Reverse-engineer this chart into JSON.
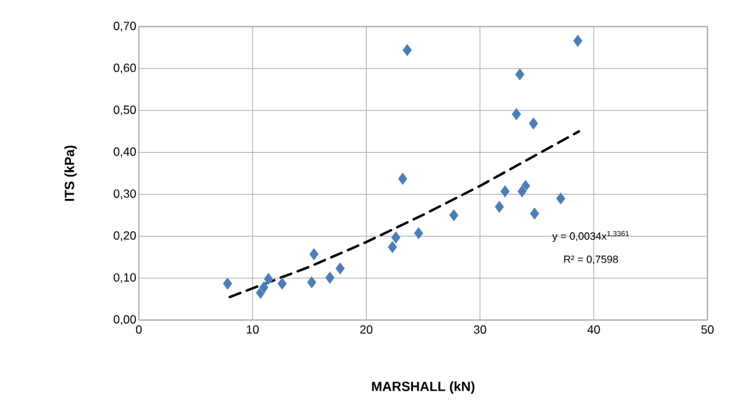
{
  "chart_data": {
    "type": "scatter",
    "xlabel": "MARSHALL (kN)",
    "ylabel": "ITS (kPa)",
    "xlim": [
      0,
      50
    ],
    "xticks": [
      0,
      10,
      20,
      30,
      40,
      50
    ],
    "ylim": [
      0,
      0.7
    ],
    "yticks": [
      {
        "value": 0,
        "label": "0,00"
      },
      {
        "value": 0.1,
        "label": "0,10"
      },
      {
        "value": 0.2,
        "label": "0,20"
      },
      {
        "value": 0.3,
        "label": "0,30"
      },
      {
        "value": 0.4,
        "label": "0,40"
      },
      {
        "value": 0.5,
        "label": "0,50"
      },
      {
        "value": 0.6,
        "label": "0,60"
      },
      {
        "value": 0.7,
        "label": "0,70"
      }
    ],
    "grid": true,
    "series": [
      {
        "marker": "diamond",
        "color": "#4a7ebb",
        "x": [
          7.8,
          10.7,
          11.0,
          11.4,
          12.6,
          15.2,
          15.4,
          16.8,
          17.7,
          22.3,
          22.6,
          24.6,
          23.2,
          23.6,
          27.7,
          38.6,
          33.5,
          33.2,
          34.7,
          32.2,
          31.7,
          34.0,
          33.7,
          34.8,
          37.1
        ],
        "values": [
          0.087,
          0.065,
          0.078,
          0.098,
          0.087,
          0.09,
          0.157,
          0.101,
          0.123,
          0.174,
          0.197,
          0.207,
          0.337,
          0.644,
          0.25,
          0.666,
          0.586,
          0.491,
          0.469,
          0.307,
          0.27,
          0.32,
          0.307,
          0.254,
          0.29
        ]
      },
      {
        "type": "line",
        "line_style": "dashed",
        "marker": "none",
        "color": "#000000",
        "x": [
          8,
          15,
          20,
          25,
          30,
          38.7
        ],
        "values": [
          0.055,
          0.127,
          0.186,
          0.251,
          0.32,
          0.45
        ]
      }
    ],
    "annotations": [
      "y = 0,0034x$^{1,3361}$",
      "R² = 0,7598"
    ]
  }
}
